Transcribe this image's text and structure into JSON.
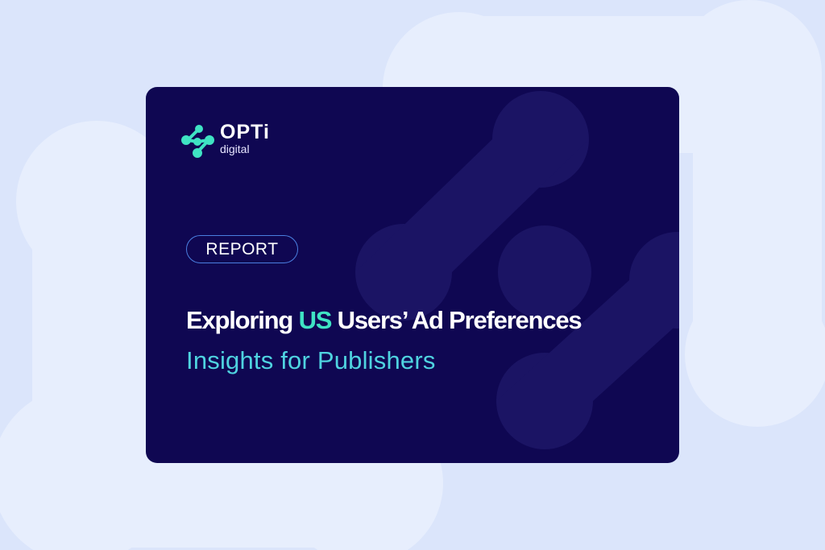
{
  "logo": {
    "name": "OPTi",
    "subname": "digital"
  },
  "badge": {
    "label": "REPORT"
  },
  "title": {
    "before": "Exploring",
    "highlight": "US",
    "after": "Users’ Ad Preferences"
  },
  "subtitle": "Insights for Publishers",
  "colors": {
    "background": "#dbe5fb",
    "card": "#0f0752",
    "accent": "#3fe3c3",
    "subtitle": "#4fd3e0",
    "badge_border": "#4a7fe0"
  }
}
